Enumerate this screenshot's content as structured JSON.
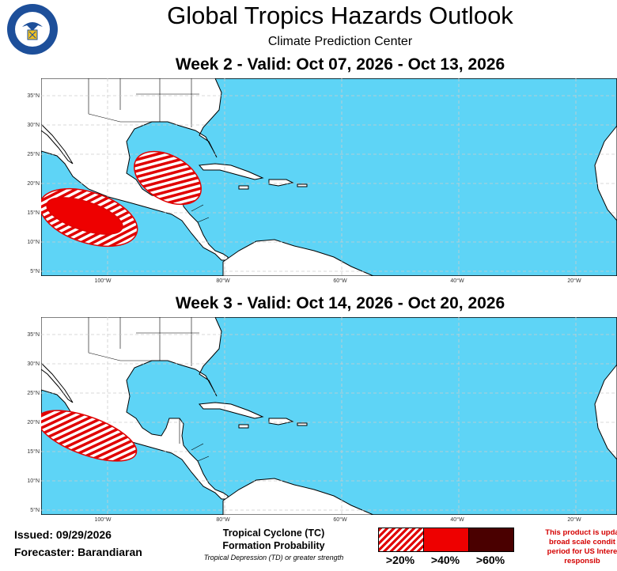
{
  "header": {
    "title": "Global Tropics Hazards Outlook",
    "subtitle": "Climate Prediction Center",
    "seal_icon": "us-department-of-commerce-seal",
    "seal_text": "DEPARTMENT OF COMMERCE · UNITED STATES OF AMERICA"
  },
  "maps": {
    "week2": {
      "title": "Week 2 - Valid: Oct 07, 2026 - Oct 13, 2026"
    },
    "week3": {
      "title": "Week 3 - Valid: Oct 14, 2026 - Oct 20, 2026"
    },
    "lat_labels": [
      "35°N",
      "30°N",
      "25°N",
      "20°N",
      "15°N",
      "10°N",
      "5°N"
    ],
    "lon_labels": [
      "100°W",
      "80°W",
      "60°W",
      "40°W",
      "20°W"
    ],
    "colors": {
      "ocean": "#5ed4f6",
      "land": "#ffffff",
      "hazard_20": "#e00000",
      "hazard_40": "#ee0000",
      "hazard_60": "#4a0000"
    }
  },
  "footer": {
    "issued": "Issued: 09/29/2026",
    "forecaster": "Forecaster: Barandiaran",
    "tc_line1": "Tropical Cyclone (TC)",
    "tc_line2": "Formation Probability",
    "tc_note": "Tropical Depression (TD) or greater strength",
    "legend": [
      ">20%",
      ">40%",
      ">60%"
    ],
    "disclaimer_line1": "This product is upda",
    "disclaimer_line2": "broad scale condit",
    "disclaimer_line3": "period for US Intere",
    "disclaimer_line4": "responsib"
  }
}
